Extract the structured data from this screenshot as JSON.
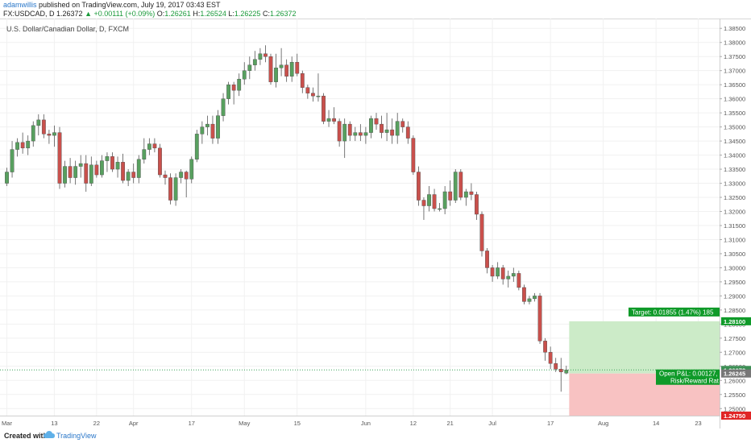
{
  "header": {
    "author": "adamwillis",
    "published_text": "published on TradingView.com, July 19, 2017 03:43 EST",
    "symbol": "FX:USDCAD, D",
    "last": "1.26372",
    "change": "▲ +0.00111 (+0.09%)",
    "open_label": "O:",
    "open": "1.26261",
    "high_label": "H:",
    "high": "1.26524",
    "low_label": "L:",
    "low": "1.26225",
    "close_label": "C:",
    "close": "1.26372"
  },
  "footer": {
    "created_with": "Created with",
    "brand": "TradingView"
  },
  "colors": {
    "bull": "#58a05f",
    "bear": "#c9504c",
    "target_zone": "#ccebc8",
    "stop_zone": "#f8c2c2",
    "label_green": "#0f9a29",
    "label_red": "#e02626"
  },
  "chart_data": {
    "type": "candlestick",
    "title": "U.S. Dollar/Canadian Dollar, D, FXCM",
    "y_axis": {
      "position": "right",
      "min": 1.2475,
      "max": 1.3885,
      "ticks": [
        "1.38500",
        "1.38000",
        "1.37500",
        "1.37000",
        "1.36500",
        "1.36000",
        "1.35500",
        "1.35000",
        "1.34500",
        "1.34000",
        "1.33500",
        "1.33000",
        "1.32500",
        "1.32000",
        "1.31500",
        "1.31000",
        "1.30500",
        "1.30000",
        "1.29500",
        "1.29000",
        "1.28500",
        "1.28000",
        "1.27500",
        "1.27000",
        "1.26500",
        "1.26000",
        "1.25500",
        "1.25000"
      ],
      "tick_values": [
        1.385,
        1.38,
        1.375,
        1.37,
        1.365,
        1.36,
        1.355,
        1.35,
        1.345,
        1.34,
        1.335,
        1.33,
        1.325,
        1.32,
        1.315,
        1.31,
        1.305,
        1.3,
        1.295,
        1.29,
        1.285,
        1.28,
        1.275,
        1.27,
        1.265,
        1.26,
        1.255,
        1.25
      ]
    },
    "x_axis": {
      "labels": [
        "Mar",
        "13",
        "22",
        "Apr",
        "17",
        "May",
        "15",
        "Jun",
        "12",
        "21",
        "Jul",
        "17",
        "Aug",
        "14",
        "23"
      ],
      "label_bars": [
        0,
        9,
        17,
        24,
        35,
        45,
        55,
        68,
        77,
        84,
        92,
        103,
        113,
        123,
        131
      ]
    },
    "candles_ohlc": [
      [
        1.33,
        1.3355,
        1.329,
        1.334
      ],
      [
        1.334,
        1.345,
        1.332,
        1.342
      ],
      [
        1.342,
        1.346,
        1.3395,
        1.3445
      ],
      [
        1.3445,
        1.348,
        1.3405,
        1.3425
      ],
      [
        1.3425,
        1.347,
        1.34,
        1.345
      ],
      [
        1.345,
        1.352,
        1.343,
        1.3505
      ],
      [
        1.3505,
        1.3545,
        1.347,
        1.3525
      ],
      [
        1.3525,
        1.3545,
        1.346,
        1.3475
      ],
      [
        1.3475,
        1.349,
        1.344,
        1.347
      ],
      [
        1.347,
        1.3505,
        1.343,
        1.348
      ],
      [
        1.348,
        1.35,
        1.328,
        1.33
      ],
      [
        1.33,
        1.338,
        1.3285,
        1.336
      ],
      [
        1.336,
        1.339,
        1.33,
        1.332
      ],
      [
        1.332,
        1.338,
        1.3295,
        1.336
      ],
      [
        1.336,
        1.34,
        1.332,
        1.337
      ],
      [
        1.337,
        1.34,
        1.327,
        1.33
      ],
      [
        1.33,
        1.3395,
        1.329,
        1.3365
      ],
      [
        1.3365,
        1.338,
        1.332,
        1.333
      ],
      [
        1.333,
        1.34,
        1.332,
        1.338
      ],
      [
        1.338,
        1.341,
        1.334,
        1.3395
      ],
      [
        1.3395,
        1.341,
        1.334,
        1.335
      ],
      [
        1.335,
        1.3395,
        1.332,
        1.3375
      ],
      [
        1.3375,
        1.3405,
        1.33,
        1.331
      ],
      [
        1.331,
        1.335,
        1.329,
        1.334
      ],
      [
        1.334,
        1.337,
        1.33,
        1.332
      ],
      [
        1.332,
        1.34,
        1.33,
        1.3385
      ],
      [
        1.3385,
        1.346,
        1.337,
        1.342
      ],
      [
        1.342,
        1.346,
        1.34,
        1.344
      ],
      [
        1.344,
        1.346,
        1.341,
        1.3425
      ],
      [
        1.3425,
        1.344,
        1.332,
        1.333
      ],
      [
        1.333,
        1.3345,
        1.3295,
        1.332
      ],
      [
        1.332,
        1.3335,
        1.3225,
        1.324
      ],
      [
        1.324,
        1.3335,
        1.322,
        1.332
      ],
      [
        1.332,
        1.335,
        1.33,
        1.334
      ],
      [
        1.334,
        1.3345,
        1.325,
        1.3315
      ],
      [
        1.3315,
        1.3395,
        1.33,
        1.3385
      ],
      [
        1.3385,
        1.349,
        1.3375,
        1.3475
      ],
      [
        1.3475,
        1.352,
        1.344,
        1.35
      ],
      [
        1.35,
        1.354,
        1.347,
        1.351
      ],
      [
        1.351,
        1.354,
        1.344,
        1.346
      ],
      [
        1.346,
        1.356,
        1.344,
        1.354
      ],
      [
        1.354,
        1.362,
        1.352,
        1.36
      ],
      [
        1.36,
        1.366,
        1.358,
        1.365
      ],
      [
        1.365,
        1.366,
        1.358,
        1.363
      ],
      [
        1.363,
        1.369,
        1.361,
        1.367
      ],
      [
        1.367,
        1.373,
        1.365,
        1.37
      ],
      [
        1.37,
        1.375,
        1.367,
        1.372
      ],
      [
        1.372,
        1.377,
        1.37,
        1.374
      ],
      [
        1.374,
        1.378,
        1.372,
        1.376
      ],
      [
        1.376,
        1.379,
        1.373,
        1.375
      ],
      [
        1.375,
        1.376,
        1.365,
        1.366
      ],
      [
        1.366,
        1.376,
        1.364,
        1.371
      ],
      [
        1.371,
        1.378,
        1.368,
        1.372
      ],
      [
        1.372,
        1.374,
        1.366,
        1.368
      ],
      [
        1.368,
        1.375,
        1.366,
        1.373
      ],
      [
        1.373,
        1.376,
        1.368,
        1.369
      ],
      [
        1.369,
        1.37,
        1.362,
        1.364
      ],
      [
        1.364,
        1.365,
        1.36,
        1.362
      ],
      [
        1.362,
        1.364,
        1.359,
        1.361
      ],
      [
        1.361,
        1.369,
        1.359,
        1.361
      ],
      [
        1.361,
        1.362,
        1.351,
        1.352
      ],
      [
        1.352,
        1.356,
        1.35,
        1.353
      ],
      [
        1.353,
        1.357,
        1.351,
        1.352
      ],
      [
        1.352,
        1.353,
        1.343,
        1.345
      ],
      [
        1.345,
        1.353,
        1.339,
        1.351
      ],
      [
        1.351,
        1.352,
        1.345,
        1.347
      ],
      [
        1.347,
        1.35,
        1.345,
        1.348
      ],
      [
        1.348,
        1.351,
        1.345,
        1.347
      ],
      [
        1.347,
        1.35,
        1.344,
        1.348
      ],
      [
        1.348,
        1.354,
        1.346,
        1.353
      ],
      [
        1.353,
        1.355,
        1.349,
        1.351
      ],
      [
        1.351,
        1.354,
        1.346,
        1.348
      ],
      [
        1.348,
        1.355,
        1.345,
        1.349
      ],
      [
        1.349,
        1.353,
        1.344,
        1.347
      ],
      [
        1.347,
        1.355,
        1.344,
        1.352
      ],
      [
        1.352,
        1.353,
        1.348,
        1.35
      ],
      [
        1.35,
        1.352,
        1.344,
        1.346
      ],
      [
        1.346,
        1.347,
        1.333,
        1.334
      ],
      [
        1.334,
        1.336,
        1.322,
        1.324
      ],
      [
        1.324,
        1.325,
        1.317,
        1.322
      ],
      [
        1.322,
        1.329,
        1.32,
        1.326
      ],
      [
        1.326,
        1.328,
        1.32,
        1.321
      ],
      [
        1.321,
        1.323,
        1.32,
        1.321
      ],
      [
        1.321,
        1.329,
        1.319,
        1.327
      ],
      [
        1.327,
        1.331,
        1.322,
        1.324
      ],
      [
        1.324,
        1.335,
        1.323,
        1.334
      ],
      [
        1.334,
        1.335,
        1.324,
        1.325
      ],
      [
        1.325,
        1.328,
        1.322,
        1.327
      ],
      [
        1.327,
        1.33,
        1.324,
        1.326
      ],
      [
        1.326,
        1.327,
        1.317,
        1.319
      ],
      [
        1.319,
        1.32,
        1.304,
        1.306
      ],
      [
        1.306,
        1.307,
        1.298,
        1.3
      ],
      [
        1.3,
        1.301,
        1.295,
        1.297
      ],
      [
        1.297,
        1.302,
        1.296,
        1.3
      ],
      [
        1.3,
        1.301,
        1.294,
        1.296
      ],
      [
        1.296,
        1.299,
        1.293,
        1.297
      ],
      [
        1.297,
        1.3,
        1.295,
        1.298
      ],
      [
        1.298,
        1.299,
        1.292,
        1.293
      ],
      [
        1.293,
        1.294,
        1.287,
        1.288
      ],
      [
        1.288,
        1.29,
        1.287,
        1.289
      ],
      [
        1.289,
        1.291,
        1.288,
        1.29
      ],
      [
        1.29,
        1.291,
        1.273,
        1.274
      ],
      [
        1.274,
        1.275,
        1.267,
        1.27
      ],
      [
        1.27,
        1.272,
        1.264,
        1.266
      ],
      [
        1.266,
        1.268,
        1.263,
        1.264
      ],
      [
        1.264,
        1.268,
        1.256,
        1.263
      ],
      [
        1.2626,
        1.2652,
        1.2622,
        1.2637
      ]
    ],
    "last_price": 1.26372,
    "entry_price": 1.26245,
    "target_price": 1.281,
    "stop_price": 1.2475,
    "position_start_bar": 107,
    "target_label": "Target: 0.01855 (1.47%) 185",
    "open_pl_label": "Open P&L: 0.00127,",
    "risk_reward_label": "Risk/Reward Rat",
    "price_tag_last": "1.26372",
    "price_tag_entry": "1.26245",
    "price_tag_target": "1.28100",
    "price_tag_stop": "1.24750"
  }
}
